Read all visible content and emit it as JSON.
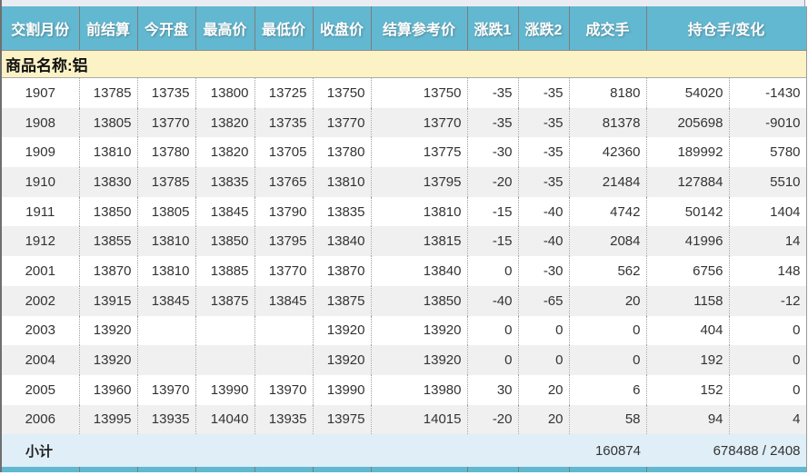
{
  "colors": {
    "header_bg": "#62b8d0",
    "header_text": "#ffffff",
    "product_row_bg": "#fbf2c6",
    "subtotal_bg": "#dfeef7",
    "alt_row_bg": "#f0f0f0",
    "data_text": "#333333"
  },
  "table": {
    "columns": [
      "交割月份",
      "前结算",
      "今开盘",
      "最高价",
      "最低价",
      "收盘价",
      "结算参考价",
      "涨跌1",
      "涨跌2",
      "成交手",
      "持仓手/变化"
    ],
    "product_label": "商品名称:铝",
    "rows": [
      [
        "1907",
        "13785",
        "13735",
        "13800",
        "13725",
        "13750",
        "13750",
        "-35",
        "-35",
        "8180",
        "54020",
        "-1430"
      ],
      [
        "1908",
        "13805",
        "13770",
        "13820",
        "13735",
        "13770",
        "13770",
        "-35",
        "-35",
        "81378",
        "205698",
        "-9010"
      ],
      [
        "1909",
        "13810",
        "13780",
        "13820",
        "13705",
        "13780",
        "13775",
        "-30",
        "-35",
        "42360",
        "189992",
        "5780"
      ],
      [
        "1910",
        "13830",
        "13785",
        "13835",
        "13765",
        "13810",
        "13795",
        "-20",
        "-35",
        "21484",
        "127884",
        "5510"
      ],
      [
        "1911",
        "13850",
        "13805",
        "13845",
        "13790",
        "13835",
        "13810",
        "-15",
        "-40",
        "4742",
        "50142",
        "1404"
      ],
      [
        "1912",
        "13855",
        "13810",
        "13850",
        "13795",
        "13840",
        "13815",
        "-15",
        "-40",
        "2084",
        "41996",
        "14"
      ],
      [
        "2001",
        "13870",
        "13810",
        "13885",
        "13770",
        "13870",
        "13840",
        "0",
        "-30",
        "562",
        "6756",
        "148"
      ],
      [
        "2002",
        "13915",
        "13845",
        "13875",
        "13845",
        "13875",
        "13850",
        "-40",
        "-65",
        "20",
        "1158",
        "-12"
      ],
      [
        "2003",
        "13920",
        "",
        "",
        "",
        "13920",
        "13920",
        "0",
        "0",
        "0",
        "404",
        "0"
      ],
      [
        "2004",
        "13920",
        "",
        "",
        "",
        "13920",
        "13920",
        "0",
        "0",
        "0",
        "192",
        "0"
      ],
      [
        "2005",
        "13960",
        "13970",
        "13990",
        "13970",
        "13990",
        "13980",
        "30",
        "20",
        "6",
        "152",
        "0"
      ],
      [
        "2006",
        "13995",
        "13935",
        "14040",
        "13935",
        "13975",
        "14015",
        "-20",
        "20",
        "58",
        "94",
        "4"
      ]
    ],
    "subtotal": {
      "label": "小计",
      "volume": "160874",
      "open_interest_change": "678488 / 2408"
    }
  }
}
